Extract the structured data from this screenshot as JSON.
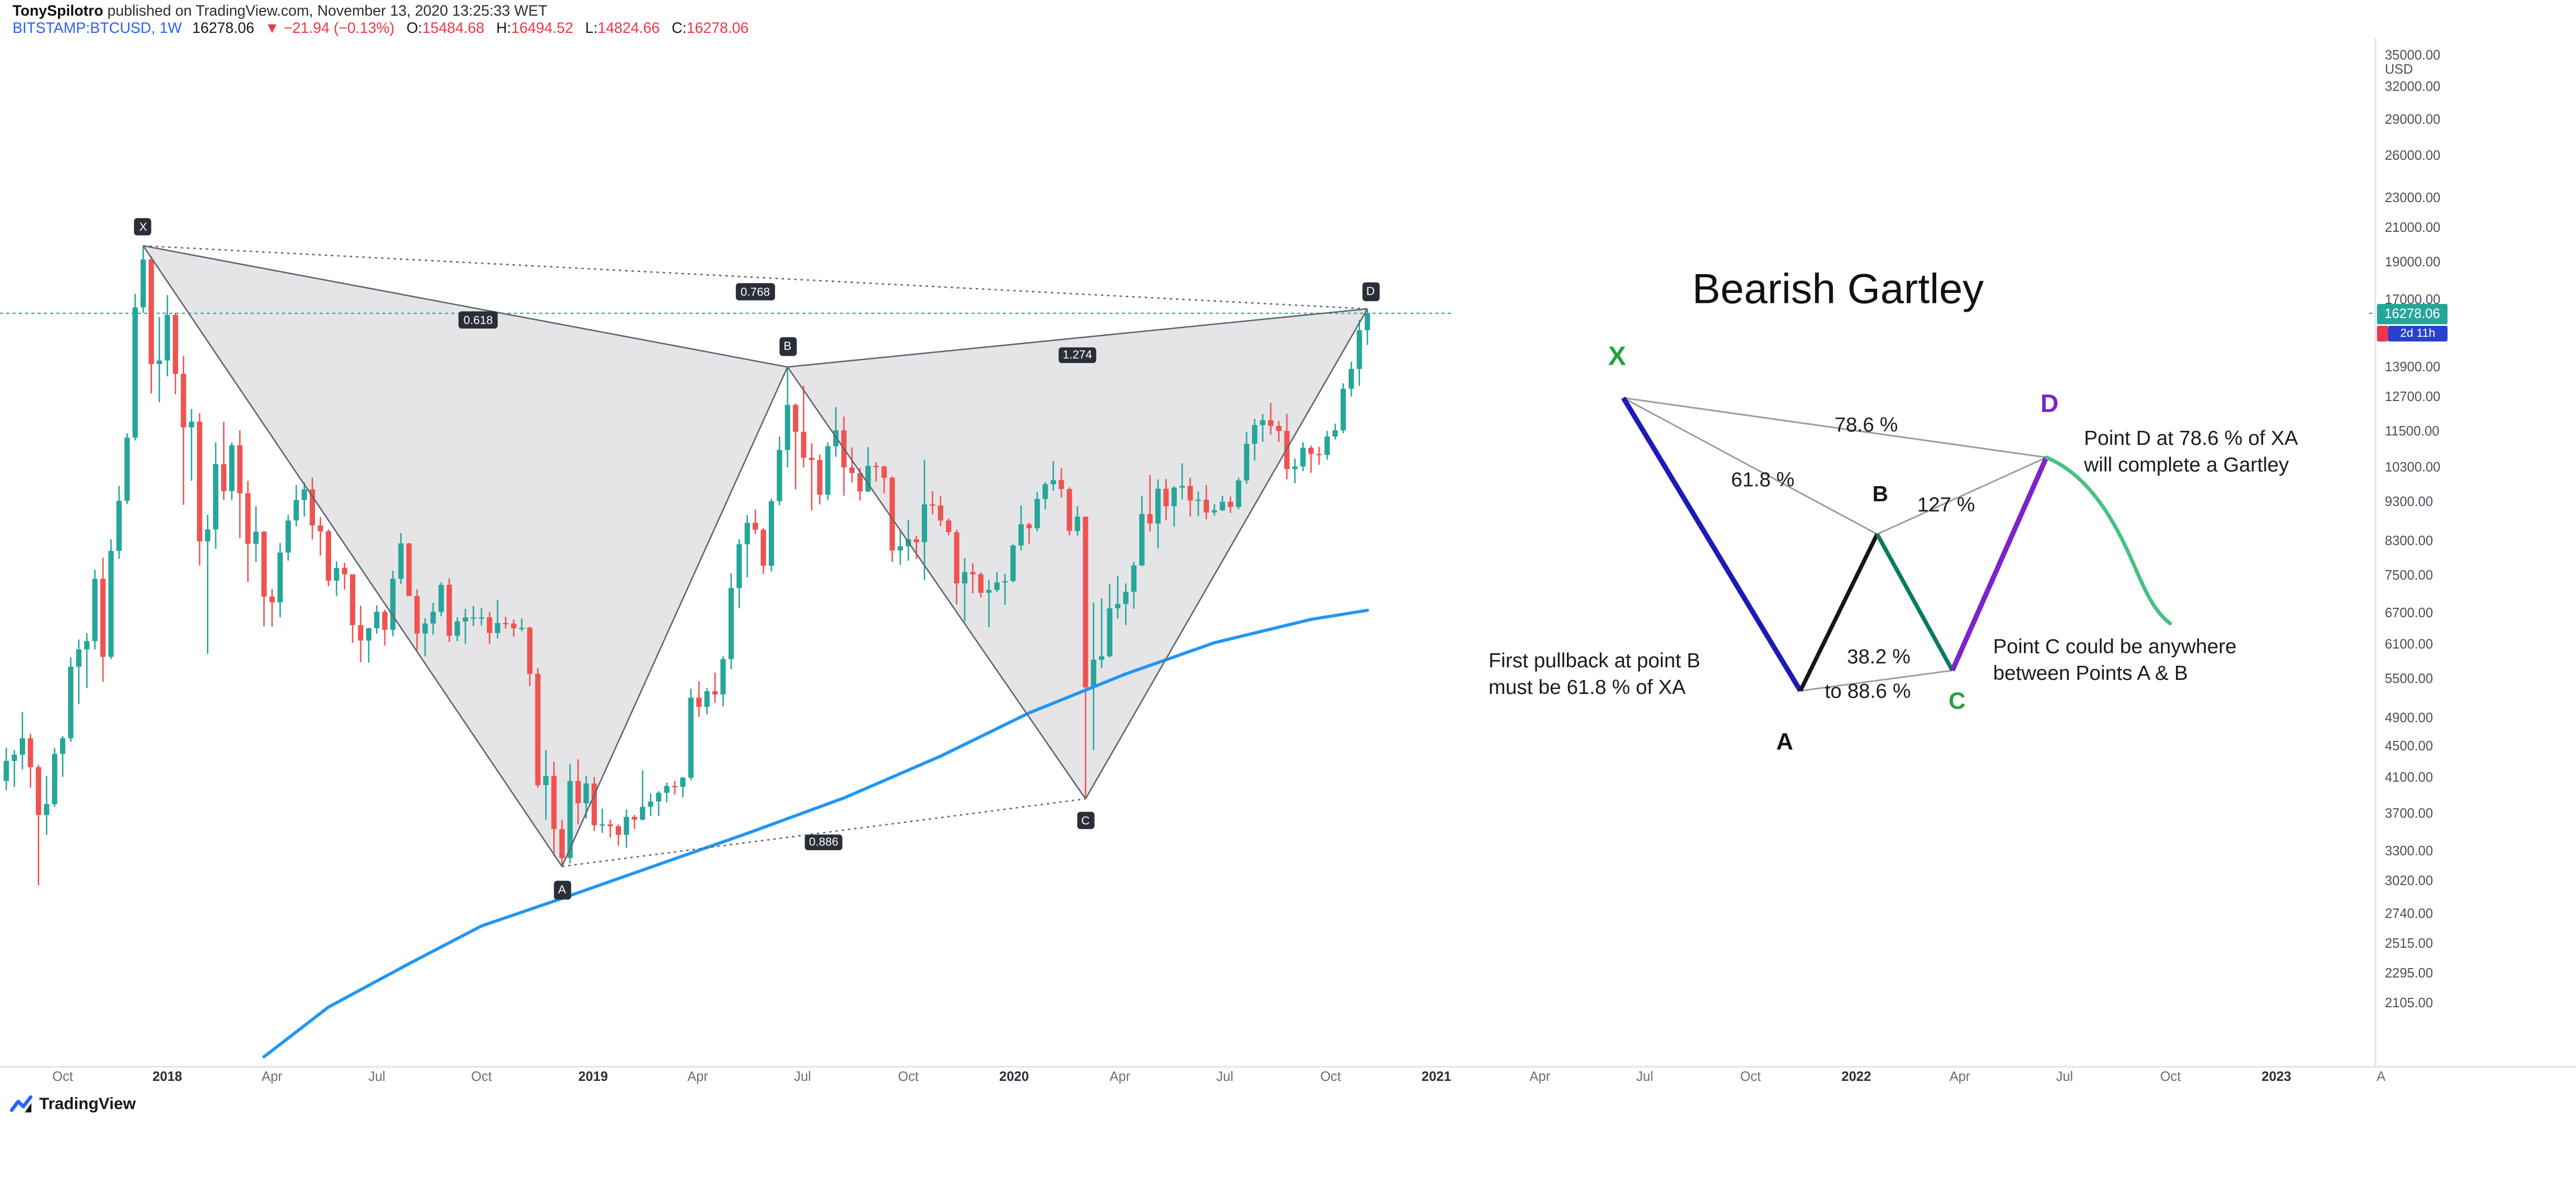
{
  "header": {
    "byline_name": "TonySpilotro",
    "byline_rest": " published on TradingView.com, November 13, 2020 13:25:33 WET",
    "symbol": "BITSTAMP:BTCUSD, 1W",
    "last_price": "16278.06",
    "change": "▼ −21.94 (−0.13%)",
    "ohlc": [
      {
        "label": "O:",
        "value": "15484.68"
      },
      {
        "label": "H:",
        "value": "16494.52"
      },
      {
        "label": "L:",
        "value": "14824.66"
      },
      {
        "label": "C:",
        "value": "16278.06"
      }
    ]
  },
  "axis": {
    "unit": "USD",
    "price_badge": "16278.06",
    "countdown": "2d 11h",
    "price_ticks": [
      35000,
      32000,
      29000,
      26000,
      23000,
      21000,
      19000,
      17000,
      13900,
      12700,
      11500,
      10300,
      9300,
      8300,
      7500,
      6700,
      6100,
      5500,
      4900,
      4500,
      4100,
      3700,
      3300,
      3020,
      2740,
      2515,
      2295,
      2105
    ],
    "time_ticks": [
      [
        "Oct",
        7
      ],
      [
        "2018",
        20
      ],
      [
        "Apr",
        33
      ],
      [
        "Jul",
        46
      ],
      [
        "Oct",
        59
      ],
      [
        "2019",
        72.86
      ],
      [
        "Apr",
        85.86
      ],
      [
        "Jul",
        98.86
      ],
      [
        "Oct",
        112.0
      ],
      [
        "2020",
        125.14
      ],
      [
        "Apr",
        138.29
      ],
      [
        "Jul",
        151.29
      ],
      [
        "Oct",
        164.43
      ],
      [
        "2021",
        177.57
      ],
      [
        "Apr",
        190.43
      ],
      [
        "Jul",
        203.43
      ],
      [
        "Oct",
        216.57
      ],
      [
        "2022",
        229.71
      ],
      [
        "Apr",
        242.57
      ],
      [
        "Jul",
        255.57
      ],
      [
        "Oct",
        268.71
      ],
      [
        "2023",
        281.86
      ],
      [
        "A",
        294.86
      ]
    ]
  },
  "pattern": {
    "points": {
      "X": {
        "i": 17,
        "price": 19891,
        "label": "X"
      },
      "A": {
        "i": 69,
        "price": 3150,
        "label": "A"
      },
      "B": {
        "i": 97,
        "price": 13880,
        "label": "B"
      },
      "C": {
        "i": 134,
        "price": 3850,
        "label": "C"
      },
      "D": {
        "i": 169,
        "price": 16494.52,
        "label": "D"
      }
    },
    "ratios": {
      "xb": "0.618",
      "xd": "0.768",
      "bd": "1.274",
      "ac": "0.886"
    }
  },
  "inset": {
    "title": "Bearish Gartley",
    "point_labels": {
      "x": "X",
      "a": "A",
      "b": "B",
      "c": "C",
      "d": "D"
    },
    "pct": {
      "xd": "78.6 %",
      "xb": "61.8 %",
      "bd": "127 %",
      "ac": "38.2 %",
      "ac2": "to 88.6 %"
    },
    "notes": {
      "d1": "Point D at 78.6 % of XA",
      "d2": "will complete a Gartley",
      "b1": "First pullback at point B",
      "b2": "must be 61.8 % of XA",
      "c1": "Point C could be anywhere",
      "c2": "between Points A & B"
    },
    "colors": {
      "xa": "#1d1ab8",
      "ab": "#15161a",
      "bc": "#0c7a60",
      "cd": "#7d22cc",
      "after_d": "#47c183",
      "x_label": "#26a042",
      "c_label": "#26a042",
      "d_label": "#7d22cc"
    }
  },
  "footer": {
    "logo_text": "TradingView"
  },
  "chart_data": {
    "type": "candlestick",
    "symbol": "BITSTAMP:BTCUSD",
    "interval": "1W",
    "scale": "log",
    "start_date": "2017-08-14",
    "current_price": 16278.06,
    "price_line_color": "#26a69a",
    "up_color": "#26a69a",
    "down_color": "#ef5350",
    "ylim": [
      2105,
      35000
    ],
    "ma_line": [
      [
        32,
        1790
      ],
      [
        40,
        2075
      ],
      [
        50,
        2360
      ],
      [
        59,
        2640
      ],
      [
        69,
        2865
      ],
      [
        81,
        3170
      ],
      [
        92,
        3475
      ],
      [
        104,
        3860
      ],
      [
        116,
        4370
      ],
      [
        127,
        4970
      ],
      [
        139,
        5580
      ],
      [
        150,
        6120
      ],
      [
        162,
        6560
      ],
      [
        169,
        6740
      ]
    ],
    "candles": [
      [
        4060,
        4480,
        3950,
        4310
      ],
      [
        4310,
        4450,
        3990,
        4390
      ],
      [
        4390,
        4980,
        4200,
        4610
      ],
      [
        4610,
        4670,
        3980,
        4230
      ],
      [
        4230,
        4260,
        2980,
        3670
      ],
      [
        3670,
        4120,
        3460,
        3790
      ],
      [
        3790,
        4480,
        3760,
        4400
      ],
      [
        4400,
        4640,
        4110,
        4610
      ],
      [
        4610,
        5860,
        4560,
        5700
      ],
      [
        5700,
        6180,
        5100,
        6000
      ],
      [
        6000,
        6300,
        5350,
        6150
      ],
      [
        6150,
        7600,
        6000,
        7400
      ],
      [
        7400,
        7880,
        5450,
        5870
      ],
      [
        5870,
        8320,
        5830,
        8040
      ],
      [
        8040,
        9750,
        7850,
        9330
      ],
      [
        9330,
        11400,
        9240,
        11250
      ],
      [
        11250,
        17250,
        11160,
        16570
      ],
      [
        16570,
        19891,
        16300,
        19100
      ],
      [
        19100,
        19300,
        12830,
        14000
      ],
      [
        14000,
        16100,
        12500,
        14150
      ],
      [
        14150,
        17180,
        13500,
        16200
      ],
      [
        16200,
        16300,
        12800,
        13600
      ],
      [
        13600,
        14350,
        9220,
        11600
      ],
      [
        11600,
        12250,
        9900,
        11800
      ],
      [
        11800,
        12100,
        7700,
        8270
      ],
      [
        8270,
        8950,
        5920,
        8570
      ],
      [
        8570,
        11100,
        8090,
        10400
      ],
      [
        10400,
        11790,
        9360,
        9600
      ],
      [
        9600,
        11100,
        9350,
        11000
      ],
      [
        11000,
        11500,
        8350,
        9540
      ],
      [
        9540,
        9900,
        7330,
        8210
      ],
      [
        8210,
        9180,
        7780,
        8510
      ],
      [
        8510,
        8530,
        6430,
        7020
      ],
      [
        7020,
        7180,
        6420,
        6900
      ],
      [
        6900,
        8230,
        6600,
        8000
      ],
      [
        8000,
        8940,
        7810,
        8800
      ],
      [
        8800,
        9780,
        8650,
        9350
      ],
      [
        9350,
        9860,
        8900,
        9650
      ],
      [
        9650,
        9990,
        8320,
        8670
      ],
      [
        8670,
        8890,
        7930,
        8520
      ],
      [
        8520,
        8570,
        7240,
        7360
      ],
      [
        7360,
        7790,
        7030,
        7640
      ],
      [
        7640,
        7760,
        7170,
        7500
      ],
      [
        7500,
        7500,
        6120,
        6450
      ],
      [
        6450,
        6830,
        5780,
        6160
      ],
      [
        6160,
        6400,
        5770,
        6390
      ],
      [
        6390,
        6840,
        6290,
        6710
      ],
      [
        6710,
        6750,
        6070,
        6360
      ],
      [
        6360,
        7580,
        6240,
        7400
      ],
      [
        7400,
        8480,
        7290,
        8220
      ],
      [
        8220,
        8230,
        7280,
        7030
      ],
      [
        7030,
        7170,
        5980,
        6290
      ],
      [
        6290,
        6580,
        5880,
        6480
      ],
      [
        6480,
        6890,
        6270,
        6710
      ],
      [
        6710,
        7320,
        6620,
        7270
      ],
      [
        7270,
        7410,
        6130,
        6250
      ],
      [
        6250,
        6600,
        6150,
        6520
      ],
      [
        6520,
        6770,
        6100,
        6600
      ],
      [
        6600,
        6830,
        6430,
        6600
      ],
      [
        6600,
        6790,
        6440,
        6600
      ],
      [
        6600,
        6700,
        6100,
        6300
      ],
      [
        6300,
        6950,
        6200,
        6490
      ],
      [
        6490,
        6610,
        6380,
        6480
      ],
      [
        6480,
        6560,
        6230,
        6390
      ],
      [
        6390,
        6580,
        6330,
        6400
      ],
      [
        6400,
        6420,
        5380,
        5580
      ],
      [
        5580,
        5680,
        3980,
        4010
      ],
      [
        4010,
        4450,
        3620,
        4120
      ],
      [
        4120,
        4300,
        3250,
        3520
      ],
      [
        3520,
        3620,
        3150,
        3230
      ],
      [
        3230,
        4270,
        3180,
        4060
      ],
      [
        4060,
        4330,
        3570,
        3800
      ],
      [
        3800,
        4120,
        3630,
        4030
      ],
      [
        4030,
        4110,
        3500,
        3560
      ],
      [
        3560,
        3740,
        3480,
        3570
      ],
      [
        3570,
        3620,
        3430,
        3550
      ],
      [
        3550,
        3570,
        3350,
        3460
      ],
      [
        3460,
        3730,
        3330,
        3650
      ],
      [
        3650,
        3670,
        3520,
        3620
      ],
      [
        3620,
        4190,
        3610,
        3760
      ],
      [
        3760,
        3910,
        3660,
        3820
      ],
      [
        3820,
        3940,
        3660,
        3920
      ],
      [
        3920,
        4040,
        3810,
        4000
      ],
      [
        4000,
        4060,
        3900,
        3990
      ],
      [
        3990,
        4110,
        3870,
        4100
      ],
      [
        4100,
        5340,
        4070,
        5200
      ],
      [
        5200,
        5460,
        4910,
        5060
      ],
      [
        5060,
        5350,
        4950,
        5300
      ],
      [
        5300,
        5600,
        5120,
        5250
      ],
      [
        5250,
        5880,
        5070,
        5830
      ],
      [
        5830,
        7520,
        5660,
        7200
      ],
      [
        7200,
        8320,
        6780,
        8200
      ],
      [
        8200,
        8940,
        7430,
        8740
      ],
      [
        8740,
        9090,
        8450,
        8560
      ],
      [
        8560,
        8600,
        7510,
        7690
      ],
      [
        7690,
        9390,
        7560,
        9320
      ],
      [
        9320,
        11290,
        9210,
        10850
      ],
      [
        10850,
        13880,
        10300,
        12400
      ],
      [
        12400,
        12450,
        9650,
        11450
      ],
      [
        11450,
        13130,
        10300,
        10600
      ],
      [
        10600,
        11070,
        9070,
        10530
      ],
      [
        10530,
        10700,
        9230,
        9500
      ],
      [
        9500,
        11090,
        9350,
        10970
      ],
      [
        10970,
        12320,
        10630,
        11500
      ],
      [
        11500,
        11980,
        9470,
        10300
      ],
      [
        10300,
        10930,
        9850,
        10130
      ],
      [
        10130,
        10280,
        9340,
        9590
      ],
      [
        9590,
        10940,
        9580,
        10350
      ],
      [
        10350,
        10460,
        9880,
        10330
      ],
      [
        10330,
        10350,
        9540,
        9990
      ],
      [
        9990,
        10030,
        7780,
        8050
      ],
      [
        8050,
        8540,
        7710,
        8150
      ],
      [
        8150,
        8820,
        7810,
        8320
      ],
      [
        8320,
        8410,
        7850,
        8250
      ],
      [
        8250,
        10540,
        7370,
        9230
      ],
      [
        9230,
        9600,
        8960,
        9200
      ],
      [
        9200,
        9460,
        8650,
        8800
      ],
      [
        8800,
        8850,
        8420,
        8500
      ],
      [
        8500,
        8560,
        6860,
        7300
      ],
      [
        7300,
        7870,
        6520,
        7550
      ],
      [
        7550,
        7750,
        7090,
        7500
      ],
      [
        7500,
        7540,
        7000,
        7100
      ],
      [
        7100,
        7380,
        6410,
        7160
      ],
      [
        7160,
        7550,
        7110,
        7320
      ],
      [
        7320,
        7510,
        6850,
        7350
      ],
      [
        7350,
        8200,
        7320,
        8170
      ],
      [
        8170,
        9200,
        8050,
        8700
      ],
      [
        8700,
        8740,
        8210,
        8600
      ],
      [
        8600,
        9580,
        8520,
        9380
      ],
      [
        9380,
        9860,
        9090,
        9800
      ],
      [
        9800,
        10500,
        9610,
        9920
      ],
      [
        9920,
        10290,
        9420,
        9660
      ],
      [
        9660,
        9710,
        8420,
        8530
      ],
      [
        8530,
        9180,
        8410,
        8900
      ],
      [
        8900,
        8900,
        3850,
        5360
      ],
      [
        5360,
        6900,
        4450,
        5820
      ],
      [
        5820,
        6980,
        5680,
        5880
      ],
      [
        5880,
        7290,
        5860,
        6780
      ],
      [
        6780,
        7470,
        6580,
        6870
      ],
      [
        6870,
        7300,
        6450,
        7120
      ],
      [
        7120,
        7780,
        6770,
        7700
      ],
      [
        7700,
        9460,
        7680,
        8970
      ],
      [
        8970,
        10070,
        8520,
        8720
      ],
      [
        8720,
        9940,
        8100,
        9670
      ],
      [
        9670,
        9950,
        8810,
        9180
      ],
      [
        9180,
        9740,
        8640,
        9700
      ],
      [
        9700,
        10430,
        9370,
        9750
      ],
      [
        9750,
        9990,
        8900,
        9340
      ],
      [
        9340,
        9590,
        8910,
        9360
      ],
      [
        9360,
        9780,
        8830,
        9010
      ],
      [
        9010,
        9240,
        8930,
        9070
      ],
      [
        9070,
        9470,
        9050,
        9300
      ],
      [
        9300,
        9450,
        9000,
        9160
      ],
      [
        9160,
        9990,
        9100,
        9910
      ],
      [
        9910,
        11450,
        9810,
        11050
      ],
      [
        11050,
        11900,
        10510,
        11680
      ],
      [
        11680,
        12070,
        11120,
        11850
      ],
      [
        11850,
        12480,
        11350,
        11650
      ],
      [
        11650,
        11820,
        11110,
        11480
      ],
      [
        11480,
        12080,
        9940,
        10250
      ],
      [
        10250,
        10580,
        9830,
        10330
      ],
      [
        10330,
        11100,
        10190,
        10920
      ],
      [
        10920,
        10990,
        10140,
        10720
      ],
      [
        10720,
        10950,
        10380,
        10690
      ],
      [
        10690,
        11480,
        10540,
        11290
      ],
      [
        11290,
        11730,
        11190,
        11500
      ],
      [
        11500,
        13220,
        11400,
        13010
      ],
      [
        13010,
        14100,
        12720,
        13800
      ],
      [
        13800,
        15960,
        13130,
        15480
      ],
      [
        15484.68,
        16494.52,
        14824.66,
        16278.06
      ]
    ]
  }
}
